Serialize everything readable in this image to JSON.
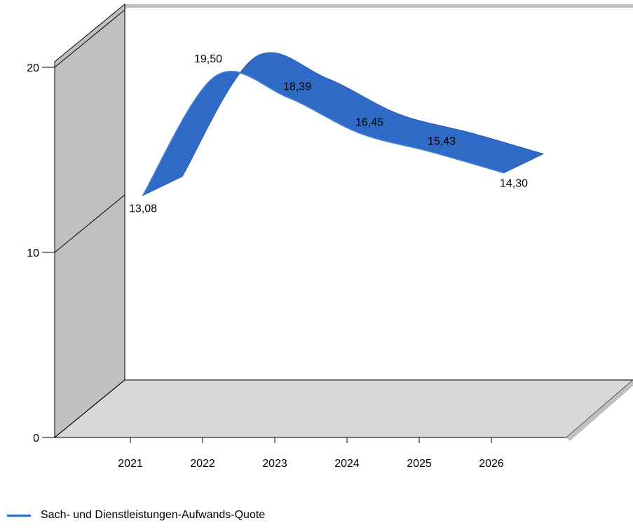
{
  "chart_data": {
    "type": "line",
    "categories": [
      "2021",
      "2022",
      "2023",
      "2024",
      "2025",
      "2026"
    ],
    "series": [
      {
        "name": "Sach- und Dienstleistungen-Aufwands-Quote",
        "values": [
          13.08,
          19.5,
          18.39,
          16.45,
          15.43,
          14.3
        ],
        "labels": [
          "13,08",
          "19,50",
          "18,39",
          "16,45",
          "15,43",
          "14,30"
        ]
      }
    ],
    "ylim": [
      0,
      20
    ],
    "yticks": [
      0,
      10,
      20
    ],
    "yticklabels": [
      "0",
      "10",
      "20"
    ],
    "title": "",
    "xlabel": "",
    "ylabel": "",
    "style": "3d-ribbon",
    "legend_position": "bottom-left",
    "colors": {
      "series": "#2F6AC6",
      "series_dark": "#2A5FAF",
      "series_light": "#3B7BD8",
      "left_wall": "#C0C0C0",
      "floor": "#D8D8D8",
      "edge_shadow": "#BFBFBF",
      "axis": "#000000"
    }
  }
}
